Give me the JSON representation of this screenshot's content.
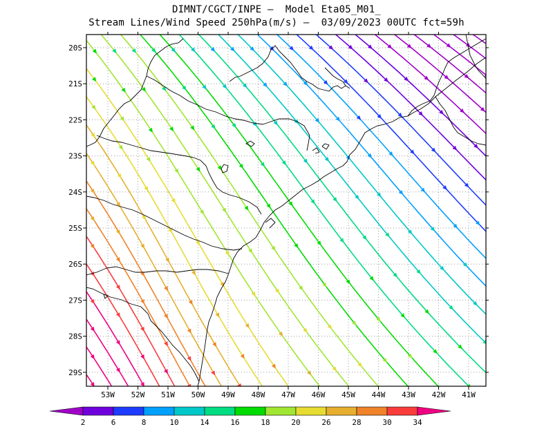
{
  "title": {
    "line1": "DIMNT/CGCT/INPE –  Model Eta05_M01_",
    "line2": "Stream Lines/Wind Speed 250hPa(m/s) –  03/09/2023 00UTC fct=59h"
  },
  "lat_labels": [
    "20S",
    "21S",
    "22S",
    "23S",
    "24S",
    "25S",
    "26S",
    "27S",
    "28S",
    "29S"
  ],
  "lon_labels": [
    "53W",
    "52W",
    "51W",
    "50W",
    "49W",
    "48W",
    "47W",
    "46W",
    "45W",
    "44W",
    "43W",
    "42W",
    "41W"
  ],
  "colorbar": {
    "labels": [
      "2",
      "6",
      "8",
      "10",
      "14",
      "16",
      "18",
      "20",
      "26",
      "28",
      "30",
      "34"
    ],
    "colors": [
      "#a000c8",
      "#6e00dc",
      "#1e3cff",
      "#00a0ff",
      "#00c8c8",
      "#00dc82",
      "#00dc00",
      "#a0e632",
      "#e6dc32",
      "#e6af2d",
      "#f08228",
      "#fa3c3c",
      "#f00082"
    ]
  }
}
